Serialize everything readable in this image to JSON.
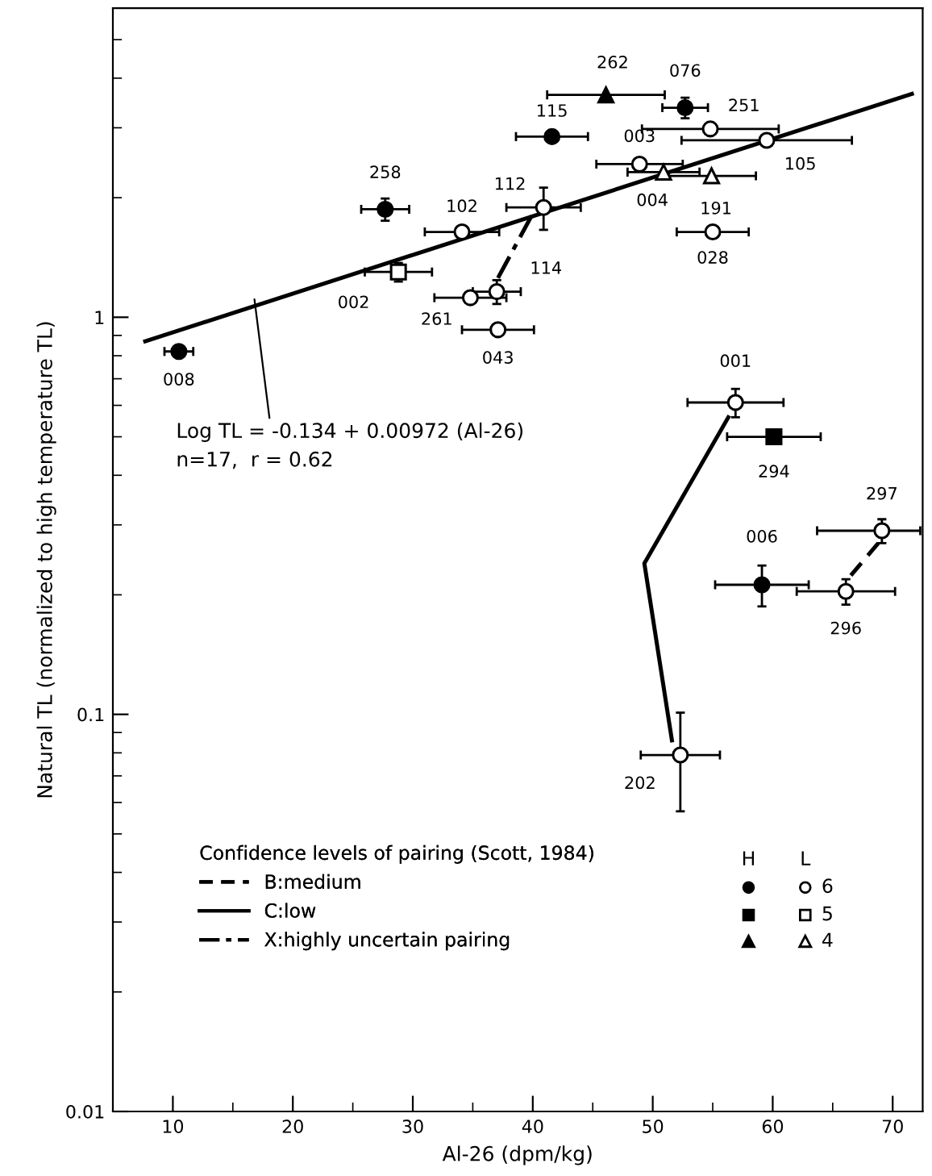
{
  "chart_data": {
    "type": "scatter",
    "xlabel": "Al-26 (dpm/kg)",
    "ylabel": "Natural TL (normalized to high temperature TL)",
    "legend_title": "Confidence levels of pairing (Scott, 1984)",
    "legend": "bottom left",
    "log": "y",
    "grid": false,
    "xlim": [
      5,
      72.5
    ],
    "xticks": [
      10,
      {
        "value": 15,
        "label": null
      },
      20,
      {
        "value": 25,
        "label": null
      },
      30,
      {
        "value": 35,
        "label": null
      },
      40,
      {
        "value": 45,
        "label": null
      },
      50,
      {
        "value": 55,
        "label": null
      },
      60,
      {
        "value": 65,
        "label": null
      },
      70
    ],
    "ylim": [
      0.01,
      6
    ],
    "yticks": [
      0.01,
      {
        "value": 0.02,
        "label": null
      },
      {
        "value": 0.03,
        "label": null
      },
      {
        "value": 0.04,
        "label": null
      },
      {
        "value": 0.05,
        "label": null
      },
      {
        "value": 0.06,
        "label": null
      },
      {
        "value": 0.07,
        "label": null
      },
      {
        "value": 0.08,
        "label": null
      },
      {
        "value": 0.09,
        "label": null
      },
      0.1,
      {
        "value": 0.2,
        "label": null
      },
      {
        "value": 0.3,
        "label": null
      },
      {
        "value": 0.4,
        "label": null
      },
      {
        "value": 0.5,
        "label": null
      },
      {
        "value": 0.6,
        "label": null
      },
      {
        "value": 0.7,
        "label": null
      },
      {
        "value": 0.8,
        "label": null
      },
      {
        "value": 0.9,
        "label": null
      },
      1,
      {
        "value": 2,
        "label": null
      },
      {
        "value": 3,
        "label": null
      },
      {
        "value": 4,
        "label": null
      },
      {
        "value": 5,
        "label": null
      }
    ],
    "series": [
      {
        "marker": "circle",
        "color": "#000000",
        "x": [
          52.7,
          41.6,
          27.7,
          10.5,
          59.1
        ],
        "values": [
          3.37,
          2.85,
          1.87,
          0.82,
          0.212
        ],
        "errors": [
          0.2,
          null,
          0.12,
          null,
          0.025
        ],
        "xerrors": [
          1.9,
          3,
          2,
          1.2,
          3.9
        ]
      },
      {
        "marker": "circle",
        "color": "#ffffff",
        "x": [
          54.8,
          59.5,
          48.9,
          40.9,
          34.1,
          55.0,
          37.0,
          34.8,
          37.1,
          56.9,
          69.1,
          66.1,
          52.3
        ],
        "values": [
          2.98,
          2.79,
          2.43,
          1.89,
          1.64,
          1.64,
          1.16,
          1.12,
          0.93,
          0.61,
          0.29,
          0.204,
          0.079
        ],
        "errors": [
          null,
          null,
          null,
          0.23,
          null,
          null,
          0.08,
          null,
          null,
          0.05,
          0.02,
          0.015,
          0.022
        ],
        "xerrors": [
          5.7,
          7.1,
          3.6,
          3.1,
          3.1,
          3,
          2,
          3,
          3,
          4,
          [
            63.7,
            72.3
          ],
          4.1,
          3.3
        ]
      },
      {
        "marker": "square",
        "color": "#000000",
        "x": [
          60.1
        ],
        "values": [
          0.5
        ],
        "errors": [
          null
        ],
        "xerrors": [
          3.9
        ]
      },
      {
        "marker": "square",
        "color": "#ffffff",
        "x": [
          28.8
        ],
        "values": [
          1.3
        ],
        "errors": [
          0.07
        ],
        "xerrors": [
          2.8
        ]
      },
      {
        "marker": "triangle",
        "color": "#000000",
        "x": [
          46.1
        ],
        "values": [
          3.63
        ],
        "errors": [
          null
        ],
        "xerrors": [
          4.9
        ]
      },
      {
        "marker": "triangle",
        "color": "#ffffff",
        "x": [
          50.9,
          54.9
        ],
        "values": [
          2.32,
          2.27
        ],
        "errors": [
          null,
          null
        ],
        "xerrors": [
          3,
          3.7
        ]
      },
      {
        "type": "line",
        "line_style": "solid",
        "color": "#000000",
        "x": [
          7.7,
          71.6
        ],
        "values": [
          0.87,
          3.65
        ]
      },
      {
        "type": "line",
        "name": "B:medium",
        "line_style": "dashed",
        "color": "#000000",
        "x": [
          68.8,
          66.3
        ],
        "values": [
          0.27,
          0.22
        ]
      },
      {
        "type": "line",
        "name": "C:low",
        "line_style": "solid",
        "color": "#000000",
        "x": [
          56.3,
          49.3,
          51.6
        ],
        "values": [
          0.56,
          0.24,
          0.086
        ]
      },
      {
        "type": "line",
        "name": "X:highly uncertain pairing",
        "line_style": "dashdot",
        "color": "#000000",
        "x": [
          39.9,
          37.0
        ],
        "values": [
          1.8,
          1.24
        ]
      }
    ],
    "annotations": [
      {
        "text": "262",
        "x": 46.1,
        "y": 3.63
      },
      {
        "text": "076",
        "x": 52.7,
        "y": 3.37
      },
      {
        "text": "251",
        "x": 54.8,
        "y": 2.98
      },
      {
        "text": "105",
        "x": 59.5,
        "y": 2.79
      },
      {
        "text": "115",
        "x": 41.6,
        "y": 2.85
      },
      {
        "text": "003",
        "x": 48.9,
        "y": 2.43
      },
      {
        "text": "004",
        "x": 50.9,
        "y": 2.32
      },
      {
        "text": "191",
        "x": 54.9,
        "y": 2.27
      },
      {
        "text": "258",
        "x": 27.7,
        "y": 1.87
      },
      {
        "text": "112",
        "x": 40.9,
        "y": 1.89
      },
      {
        "text": "102",
        "x": 34.1,
        "y": 1.64
      },
      {
        "text": "028",
        "x": 55.0,
        "y": 1.64
      },
      {
        "text": "002",
        "x": 28.8,
        "y": 1.3
      },
      {
        "text": "114",
        "x": 37.0,
        "y": 1.16
      },
      {
        "text": "261",
        "x": 34.8,
        "y": 1.12
      },
      {
        "text": "043",
        "x": 37.1,
        "y": 0.93
      },
      {
        "text": "008",
        "x": 10.5,
        "y": 0.82
      },
      {
        "text": "001",
        "x": 56.9,
        "y": 0.61
      },
      {
        "text": "294",
        "x": 60.1,
        "y": 0.5
      },
      {
        "text": "297",
        "x": 69.1,
        "y": 0.29
      },
      {
        "text": "006",
        "x": 59.1,
        "y": 0.212
      },
      {
        "text": "296",
        "x": 66.1,
        "y": 0.204
      },
      {
        "text": "202",
        "x": 52.3,
        "y": 0.079
      },
      {
        "text": "Log TL = -0.134 + 0.00972 (Al-26)\nn=17,  r = 0.62",
        "x": 16.8,
        "y": 1.11
      },
      "H",
      "L",
      "6",
      "5",
      "4"
    ]
  }
}
